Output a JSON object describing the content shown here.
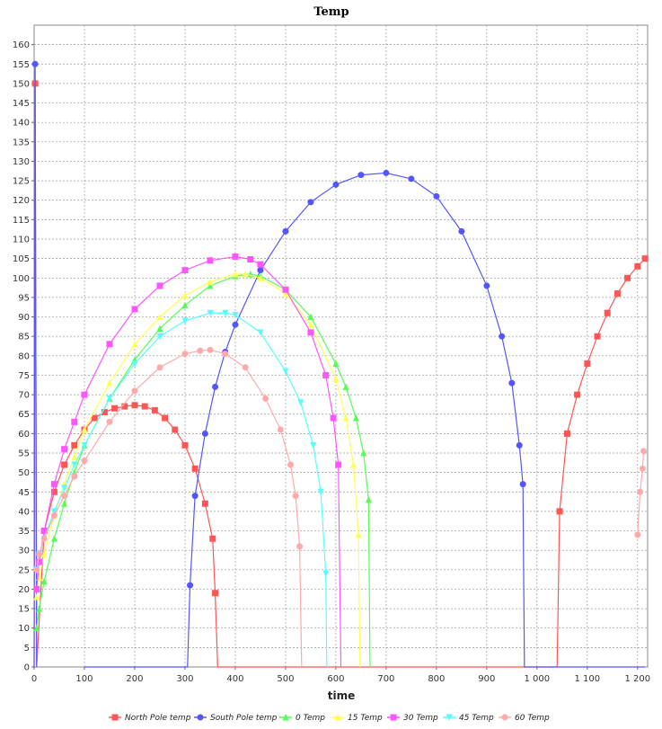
{
  "chart_data": {
    "type": "line",
    "title": "Temp",
    "xlabel": "time",
    "ylabel": "",
    "xlim": [
      0,
      1220
    ],
    "ylim": [
      0,
      165
    ],
    "x_ticks": [
      0,
      100,
      200,
      300,
      400,
      500,
      600,
      700,
      800,
      900,
      1000,
      1100,
      1200
    ],
    "x_tick_labels": [
      "0",
      "100",
      "200",
      "300",
      "400",
      "500",
      "600",
      "700",
      "800",
      "900",
      "1 000",
      "1 100",
      "1 200"
    ],
    "y_ticks": [
      0,
      5,
      10,
      15,
      20,
      25,
      30,
      35,
      40,
      45,
      50,
      55,
      60,
      65,
      70,
      75,
      80,
      85,
      90,
      95,
      100,
      105,
      110,
      115,
      120,
      125,
      130,
      135,
      140,
      145,
      150,
      155,
      160
    ],
    "grid": true,
    "legend_position": "bottom",
    "series": [
      {
        "name": "North Pole temp",
        "color": "#ff5555",
        "marker": "square",
        "x": [
          0,
          2,
          5,
          20,
          40,
          60,
          80,
          100,
          120,
          140,
          160,
          180,
          200,
          220,
          240,
          260,
          280,
          300,
          320,
          340,
          355,
          360,
          365,
          370,
          400,
          600,
          800,
          1000,
          1040,
          1045,
          1060,
          1080,
          1100,
          1120,
          1140,
          1160,
          1180,
          1200,
          1215
        ],
        "y": [
          0,
          150,
          0,
          35,
          45,
          52,
          57,
          61,
          64,
          65.5,
          66.5,
          67,
          67.3,
          67,
          66,
          64,
          61,
          57,
          51,
          42,
          33,
          19,
          0,
          0,
          0,
          0,
          0,
          0,
          0,
          40,
          60,
          70,
          78,
          85,
          91,
          96,
          100,
          103,
          105
        ]
      },
      {
        "name": "South Pole temp",
        "color": "#5555ff",
        "marker": "circle",
        "x": [
          0,
          2,
          5,
          100,
          200,
          305,
          310,
          320,
          340,
          360,
          380,
          400,
          450,
          500,
          550,
          600,
          650,
          700,
          750,
          800,
          850,
          900,
          930,
          950,
          965,
          972,
          975,
          980,
          1100,
          1215
        ],
        "y": [
          0,
          155,
          0,
          0,
          0,
          0,
          21,
          44,
          60,
          72,
          81,
          88,
          102,
          112,
          119.5,
          124,
          126.5,
          127,
          125.5,
          121,
          112,
          98,
          85,
          73,
          57,
          47,
          0,
          0,
          0,
          0
        ],
        "segments_break_after": [
          2
        ]
      },
      {
        "name": "0 Temp",
        "color": "#55ff55",
        "marker": "triangle-up",
        "x": [
          5,
          10,
          20,
          40,
          60,
          80,
          100,
          150,
          200,
          250,
          300,
          350,
          400,
          430,
          450,
          500,
          550,
          600,
          620,
          640,
          655,
          665,
          668
        ],
        "y": [
          10,
          15,
          22,
          33,
          42,
          50,
          57,
          69,
          79,
          87,
          93,
          98,
          100.5,
          101,
          100.5,
          97,
          90,
          78,
          72,
          64,
          55,
          43,
          0
        ]
      },
      {
        "name": "15 Temp",
        "color": "#ffff55",
        "marker": "triangle-up",
        "x": [
          5,
          10,
          20,
          40,
          60,
          80,
          100,
          150,
          200,
          250,
          300,
          350,
          400,
          420,
          450,
          500,
          550,
          600,
          620,
          635,
          645,
          648
        ],
        "y": [
          18,
          23,
          29,
          39,
          47,
          54,
          61,
          73,
          83,
          90,
          95.5,
          99,
          101,
          101,
          100,
          96,
          88,
          74,
          64,
          52,
          34,
          0
        ]
      },
      {
        "name": "30 Temp",
        "color": "#ff55ff",
        "marker": "square",
        "x": [
          5,
          10,
          20,
          40,
          60,
          80,
          100,
          150,
          200,
          250,
          300,
          350,
          400,
          430,
          450,
          500,
          550,
          580,
          595,
          605,
          610
        ],
        "y": [
          20,
          27,
          35,
          47,
          56,
          63,
          70,
          83,
          92,
          98,
          102,
          104.5,
          105.5,
          104.8,
          103.5,
          97,
          86,
          75,
          64,
          52,
          0
        ]
      },
      {
        "name": "45 Temp",
        "color": "#55ffff",
        "marker": "triangle-down",
        "x": [
          5,
          10,
          20,
          40,
          60,
          80,
          100,
          150,
          200,
          250,
          300,
          350,
          380,
          400,
          450,
          500,
          530,
          555,
          570,
          580,
          582
        ],
        "y": [
          25,
          29,
          33,
          40,
          46,
          52,
          57,
          69,
          78,
          85,
          89,
          91,
          91,
          90.5,
          86,
          76,
          68,
          57,
          45,
          24,
          0
        ]
      },
      {
        "name": "60 Temp",
        "color": "#ffaaaa",
        "marker": "circle",
        "x": [
          5,
          10,
          20,
          40,
          60,
          80,
          100,
          150,
          200,
          250,
          300,
          330,
          350,
          380,
          420,
          460,
          490,
          510,
          520,
          528,
          532,
          1200,
          1205,
          1210,
          1212
        ],
        "y": [
          25,
          29,
          33,
          39,
          44,
          49,
          53,
          63,
          71,
          77,
          80.5,
          81.3,
          81.5,
          80.5,
          77,
          69,
          61,
          52,
          44,
          31,
          0,
          34,
          45,
          51,
          55.5
        ],
        "segments_break_after": [
          20
        ]
      }
    ]
  }
}
